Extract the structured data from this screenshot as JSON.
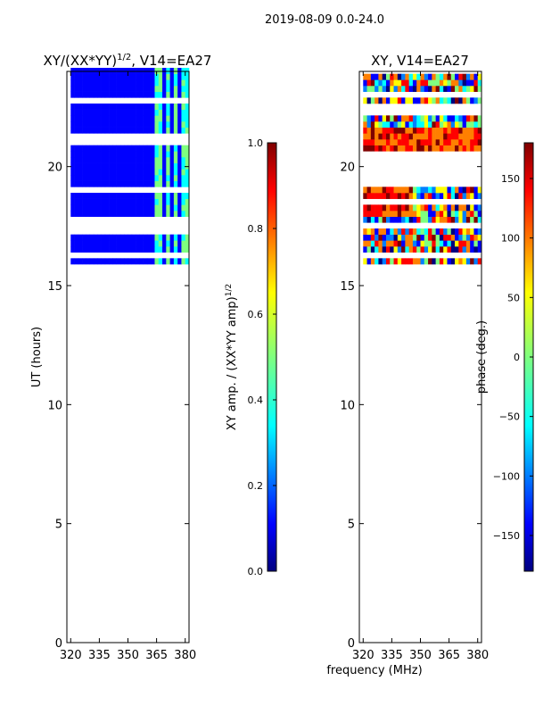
{
  "figure": {
    "suptitle": "2019-08-09 0.0-24.0",
    "shared_xlabel": "frequency (MHz)"
  },
  "chart_data": [
    {
      "type": "heatmap",
      "title_main": "XY/(XX*YY)",
      "title_sup": "1/2",
      "title_tail": ", V14=EA27",
      "xlabel": "",
      "ylabel": "UT (hours)",
      "xlim": [
        318,
        382
      ],
      "ylim": [
        0,
        24
      ],
      "xticks": [
        320,
        335,
        350,
        365,
        380
      ],
      "yticks": [
        0,
        5,
        10,
        15,
        20
      ],
      "data_extent_hours": [
        15.9,
        24
      ],
      "bright_freq_bands": [
        [
          364,
          367
        ],
        [
          369,
          372
        ],
        [
          373,
          375
        ],
        [
          378,
          381
        ]
      ],
      "colorbar": {
        "label_main": "XY amp. / (XX*YY amp)",
        "label_sup": "1/2",
        "range": [
          0.0,
          1.0
        ],
        "ticks": [
          "0.0",
          "0.2",
          "0.4",
          "0.6",
          "0.8",
          "1.0"
        ],
        "colormap": "jet"
      }
    },
    {
      "type": "heatmap",
      "title_main": "XY, V14=EA27",
      "title_sup": "",
      "title_tail": "",
      "xlabel": "",
      "ylabel": "",
      "xlim": [
        318,
        382
      ],
      "ylim": [
        0,
        24
      ],
      "xticks": [
        320,
        335,
        350,
        365,
        380
      ],
      "yticks": [
        0,
        5,
        10,
        15,
        20
      ],
      "data_extent_hours": [
        15.9,
        24
      ],
      "colorbar": {
        "label_main": "phase (deg.)",
        "range": [
          -180,
          180
        ],
        "ticks": [
          "−150",
          "−100",
          "−50",
          "0",
          "50",
          "100",
          "150"
        ],
        "tick_values": [
          -150,
          -100,
          -50,
          0,
          50,
          100,
          150
        ],
        "colormap": "jet"
      }
    }
  ],
  "colors": {
    "jet": [
      "#00007f",
      "#0000ff",
      "#007fff",
      "#00ffff",
      "#7fff7f",
      "#ffff00",
      "#ff7f00",
      "#ff0000",
      "#7f0000"
    ]
  }
}
